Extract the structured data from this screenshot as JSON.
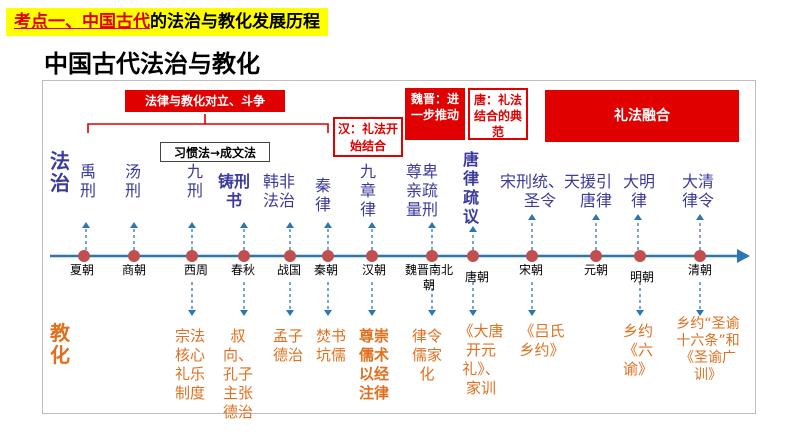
{
  "topic": {
    "highlight": "考点一、中国古代",
    "rest": "的法治与教化发展历程"
  },
  "title": "中国古代法治与教化",
  "labels": {
    "fazhi": "法治",
    "jiaohua": "教化"
  },
  "headers": {
    "conflict": "法律与教化对立、斗争",
    "custom": "习惯法→成文法",
    "han": "汉：礼法开始结合",
    "weijin": "魏晋：进一步推动",
    "tang": "唐：礼法结合的典范",
    "fusion": "礼法融合"
  },
  "dynasties": [
    "夏朝",
    "商朝",
    "西周",
    "春秋",
    "战国",
    "秦朝",
    "汉朝",
    "魏晋南北朝",
    "唐朝",
    "宋朝",
    "元朝",
    "明朝",
    "清朝"
  ],
  "legal": [
    "禹刑",
    "汤刑",
    "九刑",
    "铸刑书",
    "韩非法治",
    "秦律",
    "九章律",
    "尊卑亲疏量刑",
    "唐律疏议",
    "宋刑统、天圣令",
    "援引唐律",
    "大明律",
    "大清律令"
  ],
  "edu": [
    "宗法核心礼乐制度",
    "叔向、孔子主张德治",
    "孟子德治",
    "焚书坑儒",
    "尊崇儒术以经注律",
    "律令儒家化",
    "《大唐开元礼》、家训",
    "《吕氏乡约》",
    "乡约《六谕》",
    "乡约“圣谕十六条”和《圣谕广训》"
  ],
  "colors": {
    "accent_red": "#e00000",
    "legal_blue": "#3b3b9e",
    "edu_orange": "#e07020",
    "timeline_blue": "#2e75b6",
    "dot": "#c0504d",
    "highlight_yellow": "#ffff00"
  }
}
